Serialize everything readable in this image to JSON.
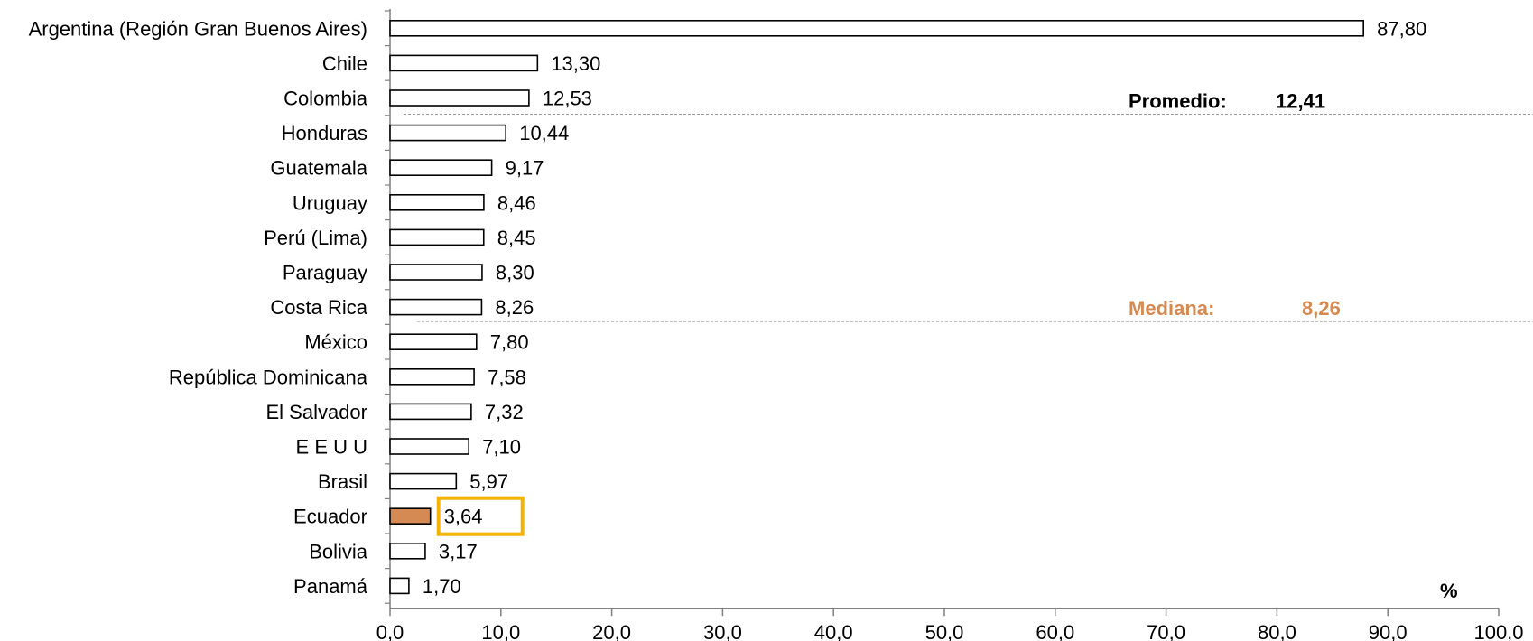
{
  "colors": {
    "bar_fill": "#ffffff",
    "bar_stroke": "#000000",
    "highlight_fill": "#d48a52",
    "highlight_box": "#f2b400",
    "mean_text": "#000000",
    "median_text": "#d48a52",
    "axis": "#808080"
  },
  "chart_data": {
    "type": "bar",
    "orientation": "horizontal",
    "title": "",
    "xlabel": "",
    "ylabel": "",
    "unit_label": "%",
    "xlim": [
      0,
      100
    ],
    "x_ticks": [
      "0,0",
      "10,0",
      "20,0",
      "30,0",
      "40,0",
      "50,0",
      "60,0",
      "70,0",
      "80,0",
      "90,0",
      "100,0"
    ],
    "x_tick_values": [
      0,
      10,
      20,
      30,
      40,
      50,
      60,
      70,
      80,
      90,
      100
    ],
    "categories": [
      "Argentina (Región Gran Buenos Aires)",
      "Chile",
      "Colombia",
      "Honduras",
      "Guatemala",
      "Uruguay",
      "Perú (Lima)",
      "Paraguay",
      "Costa Rica",
      "México",
      "República Dominicana",
      "El Salvador",
      "E E U U",
      "Brasil",
      "Ecuador",
      "Bolivia",
      "Panamá"
    ],
    "values": [
      87.8,
      13.3,
      12.53,
      10.44,
      9.17,
      8.46,
      8.45,
      8.3,
      8.26,
      7.8,
      7.58,
      7.32,
      7.1,
      5.97,
      3.64,
      3.17,
      1.7
    ],
    "value_labels": [
      "87,80",
      "13,30",
      "12,53",
      "10,44",
      "9,17",
      "8,46",
      "8,45",
      "8,30",
      "8,26",
      "7,80",
      "7,58",
      "7,32",
      "7,10",
      "5,97",
      "3,64",
      "3,17",
      "1,70"
    ],
    "highlight_category": "Ecuador",
    "mean": {
      "label": "Promedio:",
      "value": 12.41,
      "value_label": "12,41"
    },
    "median": {
      "label": "Mediana:",
      "value": 8.26,
      "value_label": "8,26"
    },
    "grid": false,
    "legend": "none"
  }
}
